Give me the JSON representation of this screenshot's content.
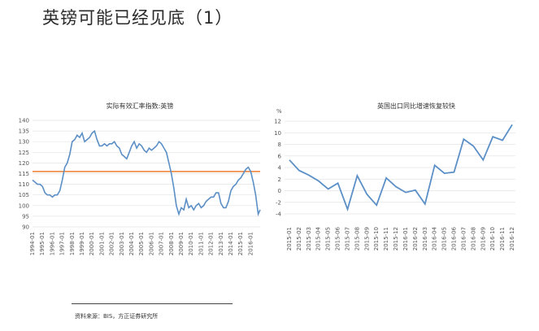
{
  "page": {
    "title": "英镑可能已经见底（1）"
  },
  "source": "资料来源：BIS，方正证券研究所",
  "colors": {
    "line": "#5b8fc6",
    "reference": "#ed7d31",
    "grid": "#e4e4e4"
  },
  "chart_data": [
    {
      "type": "line",
      "title": "实际有效汇率指数:英镑",
      "y_ticks": [
        90,
        95,
        100,
        105,
        110,
        115,
        120,
        125,
        130,
        135,
        140
      ],
      "ylim": [
        90,
        140
      ],
      "x_ticks": [
        "1994-01",
        "1995-01",
        "1996-01",
        "1997-01",
        "1998-01",
        "1999-01",
        "2000-01",
        "2001-01",
        "2002-01",
        "2003-01",
        "2004-01",
        "2005-01",
        "2006-01",
        "2007-01",
        "2008-01",
        "2009-01",
        "2010-01",
        "2011-01",
        "2012-01",
        "2013-01",
        "2014-01",
        "2015-01",
        "2016-01"
      ],
      "xlim": [
        1994.0,
        2016.95
      ],
      "reference_line": 116,
      "series": [
        {
          "x": [
            1994.0,
            1994.25,
            1994.5,
            1994.75,
            1995.0,
            1995.25,
            1995.5,
            1995.75,
            1996.0,
            1996.25,
            1996.5,
            1996.75,
            1997.0,
            1997.25,
            1997.5,
            1997.75,
            1998.0,
            1998.25,
            1998.5,
            1998.75,
            1999.0,
            1999.25,
            1999.5,
            1999.75,
            2000.0,
            2000.25,
            2000.5,
            2000.75,
            2001.0,
            2001.25,
            2001.5,
            2001.75,
            2002.0,
            2002.25,
            2002.5,
            2002.75,
            2003.0,
            2003.25,
            2003.5,
            2003.75,
            2004.0,
            2004.25,
            2004.5,
            2004.75,
            2005.0,
            2005.25,
            2005.5,
            2005.75,
            2006.0,
            2006.25,
            2006.5,
            2006.75,
            2007.0,
            2007.25,
            2007.5,
            2007.75,
            2008.0,
            2008.25,
            2008.5,
            2008.75,
            2009.0,
            2009.25,
            2009.5,
            2009.75,
            2010.0,
            2010.25,
            2010.5,
            2010.75,
            2011.0,
            2011.25,
            2011.5,
            2011.75,
            2012.0,
            2012.25,
            2012.5,
            2012.75,
            2013.0,
            2013.25,
            2013.5,
            2013.75,
            2014.0,
            2014.25,
            2014.5,
            2014.75,
            2015.0,
            2015.25,
            2015.5,
            2015.75,
            2016.0,
            2016.25,
            2016.5,
            2016.75,
            2016.95
          ],
          "y": [
            112,
            111,
            110,
            110,
            109,
            106,
            105,
            105,
            104,
            105,
            105,
            107,
            112,
            118,
            120,
            124,
            130,
            131,
            133,
            132,
            134,
            130,
            131,
            132,
            134,
            135,
            131,
            128,
            128,
            129,
            128,
            129,
            129,
            130,
            128,
            127,
            124,
            123,
            122,
            125,
            128,
            130,
            127,
            129,
            128,
            126,
            125,
            127,
            126,
            127,
            128,
            130,
            129,
            127,
            125,
            120,
            115,
            108,
            100,
            96,
            99,
            98,
            103,
            99,
            100,
            98,
            100,
            101,
            99,
            100,
            102,
            103,
            104,
            104,
            106,
            106,
            101,
            99,
            99,
            102,
            107,
            109,
            110,
            112,
            113,
            115,
            117,
            118,
            116,
            111,
            105,
            96,
            98
          ]
        }
      ]
    },
    {
      "type": "line",
      "title": "英国出口同比增速恢复较快",
      "unit": "%",
      "y_ticks": [
        -4,
        -2,
        0,
        2,
        4,
        6,
        8,
        10,
        12
      ],
      "ylim": [
        -4,
        12
      ],
      "categories": [
        "2015-01",
        "2015-02",
        "2015-03",
        "2015-04",
        "2015-05",
        "2015-06",
        "2015-07",
        "2015-08",
        "2015-09",
        "2015-10",
        "2015-11",
        "2015-12",
        "2016-01",
        "2016-02",
        "2016-03",
        "2016-04",
        "2016-05",
        "2016-06",
        "2016-07",
        "2016-08",
        "2016-09",
        "2016-10",
        "2016-11",
        "2016-12"
      ],
      "series": [
        {
          "values": [
            5.3,
            3.5,
            2.7,
            1.7,
            0.3,
            1.3,
            -3.2,
            2.6,
            -0.6,
            -2.5,
            2.2,
            0.7,
            -0.3,
            0.1,
            -2.3,
            4.4,
            3.0,
            3.2,
            8.9,
            7.7,
            5.3,
            9.3,
            8.7,
            11.4
          ]
        }
      ]
    }
  ]
}
